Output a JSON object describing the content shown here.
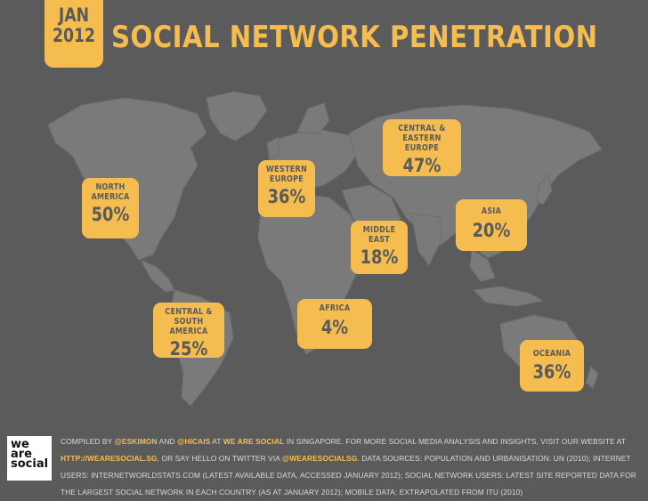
{
  "badge": {
    "month": "JAN",
    "year": "2012"
  },
  "title": "SOCIAL NETWORK PENETRATION",
  "colors": {
    "background": "#5b5b5b",
    "land": "#7a7a7a",
    "accent": "#f5bd4f",
    "text_dark": "#5a5a5a"
  },
  "chart_data": {
    "type": "table",
    "title": "SOCIAL NETWORK PENETRATION",
    "regions": [
      {
        "name": "NORTH AMERICA",
        "value": 50,
        "label": "50%"
      },
      {
        "name": "CENTRAL & SOUTH AMERICA",
        "value": 25,
        "label": "25%"
      },
      {
        "name": "WESTERN EUROPE",
        "value": 36,
        "label": "36%"
      },
      {
        "name": "CENTRAL & EASTERN EUROPE",
        "value": 47,
        "label": "47%"
      },
      {
        "name": "MIDDLE EAST",
        "value": 18,
        "label": "18%"
      },
      {
        "name": "AFRICA",
        "value": 4,
        "label": "4%"
      },
      {
        "name": "ASIA",
        "value": 20,
        "label": "20%"
      },
      {
        "name": "OCEANIA",
        "value": 36,
        "label": "36%"
      }
    ]
  },
  "callouts": {
    "north_america": {
      "line1": "NORTH",
      "line2": "AMERICA",
      "value": "50%"
    },
    "south_america": {
      "line1": "CENTRAL &",
      "line2": "SOUTH AMERICA",
      "value": "25%"
    },
    "western_europe": {
      "line1": "WESTERN",
      "line2": "EUROPE",
      "value": "36%"
    },
    "eastern_europe": {
      "line1": "CENTRAL &",
      "line2": "EASTERN EUROPE",
      "value": "47%"
    },
    "middle_east": {
      "line1": "MIDDLE",
      "line2": "EAST",
      "value": "18%"
    },
    "africa": {
      "line1": "AFRICA",
      "value": "4%"
    },
    "asia": {
      "line1": "ASIA",
      "value": "20%"
    },
    "oceania": {
      "line1": "OCEANIA",
      "value": "36%"
    }
  },
  "footer": {
    "p1": "COMPILED BY ",
    "h1": "@ESKIMON",
    "p2": " AND ",
    "h2": "@HICAIS",
    "p3": " AT ",
    "h3": "WE ARE SOCIAL",
    "p4": " IN SINGAPORE. FOR MORE SOCIAL MEDIA ANALYSIS AND INSIGHTS, VISIT OUR WEBSITE AT ",
    "h4": "HTTP://WEARESOCIAL.SG",
    "p5": ", OR SAY HELLO ON TWITTER VIA ",
    "h5": "@WEARESOCIALSG",
    "p6": ". DATA SOURCES: POPULATION AND URBANISATION: UN (2010); INTERNET USERS: INTERNETWORLDSTATS.COM (LATEST AVAILABLE DATA, ACCESSED JANUARY 2012); SOCIAL NETWORK USERS: LATEST SITE REPORTED DATA FOR THE LARGEST SOCIAL NETWORK IN EACH COUNTRY (AS AT JANUARY 2012); MOBILE DATA: EXTRAPOLATED FROM ITU (2010)"
  },
  "logo": {
    "line1": "we",
    "line2": "are",
    "line3": "social"
  }
}
